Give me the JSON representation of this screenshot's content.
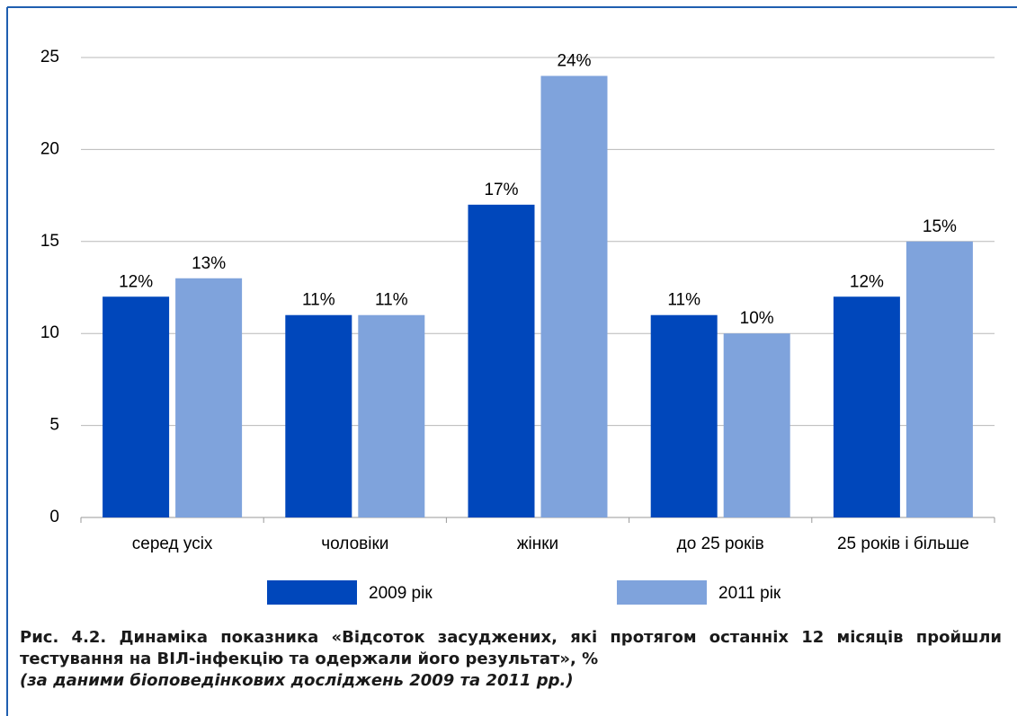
{
  "chart_data": {
    "type": "bar",
    "categories": [
      "серед усіх",
      "чоловіки",
      "жінки",
      "до 25 років",
      "25 років і більше"
    ],
    "series": [
      {
        "name": "2009 рік",
        "color": "#0047bb",
        "values": [
          12,
          11,
          17,
          11,
          12
        ],
        "value_labels": [
          "12%",
          "11%",
          "17%",
          "11%",
          "12%"
        ]
      },
      {
        "name": "2011 рік",
        "color": "#7fa3dc",
        "values": [
          13,
          11,
          24,
          10,
          15
        ],
        "value_labels": [
          "13%",
          "11%",
          "24%",
          "10%",
          "15%"
        ]
      }
    ],
    "ylim": [
      0,
      25
    ],
    "yticks": [
      0,
      5,
      10,
      15,
      20,
      25
    ],
    "grid": true,
    "caption": "Рис. 4.2. Динаміка показника «Відсоток засуджених, які протягом останніх 12 місяців пройшли тестування на ВІЛ-інфекцію та одержали його результат», %",
    "source": "(за даними біоповедінкових досліджень 2009 та 2011 рр.)"
  }
}
